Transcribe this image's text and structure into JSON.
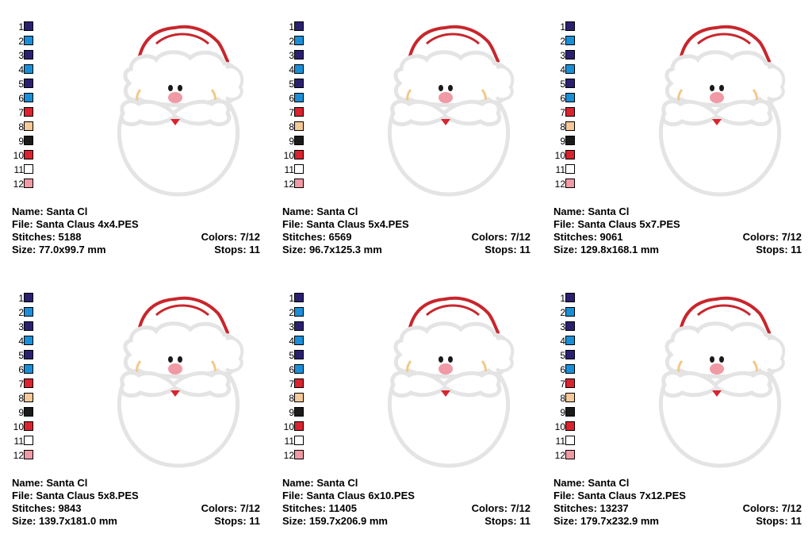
{
  "palette": [
    {
      "num": "1",
      "color": "#2a2070"
    },
    {
      "num": "2",
      "color": "#1a8fd8"
    },
    {
      "num": "3",
      "color": "#2a2070"
    },
    {
      "num": "4",
      "color": "#1a8fd8"
    },
    {
      "num": "5",
      "color": "#2a2070"
    },
    {
      "num": "6",
      "color": "#1a8fd8"
    },
    {
      "num": "7",
      "color": "#d9232e"
    },
    {
      "num": "8",
      "color": "#f5c99a"
    },
    {
      "num": "9",
      "color": "#1a1a1a"
    },
    {
      "num": "10",
      "color": "#d9232e"
    },
    {
      "num": "11",
      "color": "#ffffff"
    },
    {
      "num": "12",
      "color": "#ef9aa4"
    }
  ],
  "designs": [
    {
      "name": "Name: Santa Cl",
      "file": "File: Santa Claus 4x4.PES",
      "stitches": "Stitches: 5188",
      "colors": "Colors: 7/12",
      "size": "Size: 77.0x99.7 mm",
      "stops": "Stops: 11"
    },
    {
      "name": "Name: Santa Cl",
      "file": "File: Santa Claus 5x4.PES",
      "stitches": "Stitches: 6569",
      "colors": "Colors: 7/12",
      "size": "Size: 96.7x125.3 mm",
      "stops": "Stops: 11"
    },
    {
      "name": "Name: Santa Cl",
      "file": "File: Santa Claus 5x7.PES",
      "stitches": "Stitches: 9061",
      "colors": "Colors: 7/12",
      "size": "Size: 129.8x168.1 mm",
      "stops": "Stops: 11"
    },
    {
      "name": "Name: Santa Cl",
      "file": "File: Santa Claus 5x8.PES",
      "stitches": "Stitches: 9843",
      "colors": "Colors: 7/12",
      "size": "Size: 139.7x181.0 mm",
      "stops": "Stops: 11"
    },
    {
      "name": "Name: Santa Cl",
      "file": "File: Santa Claus 6x10.PES",
      "stitches": "Stitches: 11405",
      "colors": "Colors: 7/12",
      "size": "Size: 159.7x206.9 mm",
      "stops": "Stops: 11"
    },
    {
      "name": "Name: Santa Cl",
      "file": "File: Santa Claus 7x12.PES",
      "stitches": "Stitches: 13237",
      "colors": "Colors: 7/12",
      "size": "Size: 179.7x232.9 mm",
      "stops": "Stops: 11"
    }
  ],
  "colors": {
    "hat": "#c8262c",
    "outline": "#e6e6e6",
    "cheek": "#f2c98a",
    "nose": "#ef9aa4",
    "eye": "#1a1a1a",
    "mouth": "#d9232e"
  }
}
